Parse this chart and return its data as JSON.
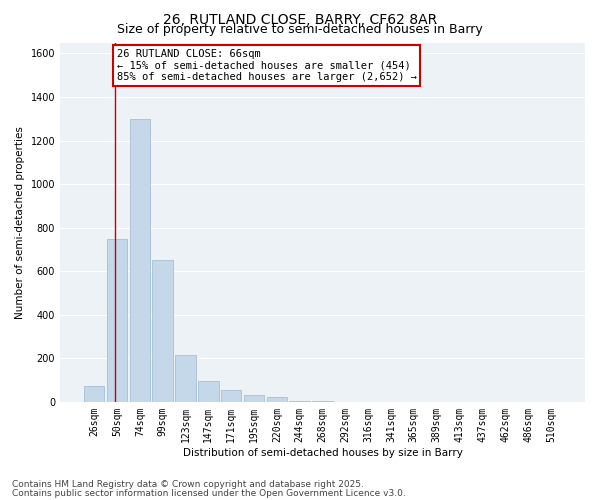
{
  "title_line1": "26, RUTLAND CLOSE, BARRY, CF62 8AR",
  "title_line2": "Size of property relative to semi-detached houses in Barry",
  "xlabel": "Distribution of semi-detached houses by size in Barry",
  "ylabel": "Number of semi-detached properties",
  "categories": [
    "26sqm",
    "50sqm",
    "74sqm",
    "99sqm",
    "123sqm",
    "147sqm",
    "171sqm",
    "195sqm",
    "220sqm",
    "244sqm",
    "268sqm",
    "292sqm",
    "316sqm",
    "341sqm",
    "365sqm",
    "389sqm",
    "413sqm",
    "437sqm",
    "462sqm",
    "486sqm",
    "510sqm"
  ],
  "values": [
    75,
    750,
    1300,
    650,
    215,
    95,
    55,
    30,
    20,
    5,
    2,
    0,
    0,
    0,
    0,
    0,
    0,
    0,
    0,
    0,
    0
  ],
  "bar_color": "#c5d8ea",
  "bar_edge_color": "#9ab8d0",
  "vline_x": 0.93,
  "vline_color": "#cc0000",
  "annotation_box_text": "26 RUTLAND CLOSE: 66sqm\n← 15% of semi-detached houses are smaller (454)\n85% of semi-detached houses are larger (2,652) →",
  "annotation_box_color": "#cc0000",
  "annotation_box_facecolor": "white",
  "ylim": [
    0,
    1650
  ],
  "yticks": [
    0,
    200,
    400,
    600,
    800,
    1000,
    1200,
    1400,
    1600
  ],
  "bg_color": "#edf2f7",
  "grid_color": "white",
  "footer_line1": "Contains HM Land Registry data © Crown copyright and database right 2025.",
  "footer_line2": "Contains public sector information licensed under the Open Government Licence v3.0.",
  "title_fontsize": 10,
  "subtitle_fontsize": 9,
  "axis_label_fontsize": 7.5,
  "tick_fontsize": 7,
  "annotation_fontsize": 7.5,
  "footer_fontsize": 6.5
}
